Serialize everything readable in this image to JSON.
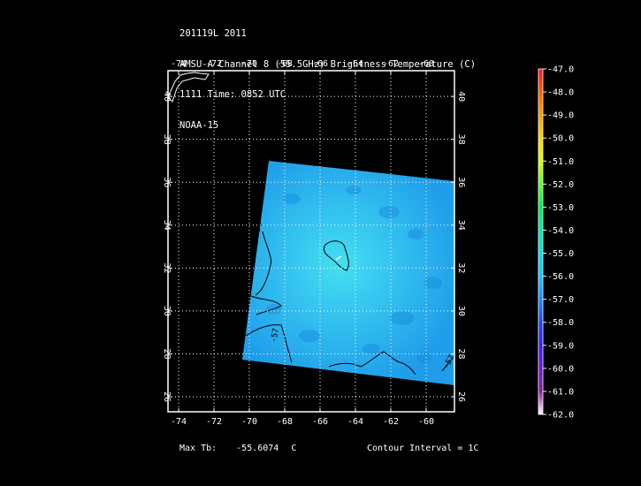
{
  "header": {
    "line1": "201119L 2011",
    "line2": "AMSU-A Channel 8 (55.5GHz) Brightness Temperature (C)",
    "line3": "1111 Time: 0852 UTC",
    "line4": "NOAA-15"
  },
  "map": {
    "lon_range": [
      -74.6,
      -58.4
    ],
    "lat_range": [
      25.3,
      41.2
    ],
    "lon_ticks": [
      "-74",
      "-72",
      "-70",
      "-68",
      "-66",
      "-64",
      "-62",
      "-60"
    ],
    "lat_ticks": [
      "40",
      "38",
      "36",
      "34",
      "32",
      "30",
      "28",
      "26"
    ],
    "contour_labels": [
      "-56",
      "-57",
      "-57"
    ],
    "colors": {
      "field_base": "#1f9dea",
      "field_warm": "#37c8f0",
      "field_center": "#44e0ee",
      "coast": "#ffffff",
      "grid": "#ffffff",
      "contour": "#000000"
    }
  },
  "colorbar": {
    "labels": [
      "-47.0",
      "-48.0",
      "-49.0",
      "-50.0",
      "-51.0",
      "-52.0",
      "-53.0",
      "-54.0",
      "-55.0",
      "-56.0",
      "-57.0",
      "-58.0",
      "-59.0",
      "-60.0",
      "-61.0",
      "-62.0"
    ],
    "colors": [
      "#ff1a1a",
      "#ff5a00",
      "#ff9a00",
      "#ffd200",
      "#d6ff00",
      "#5aff2a",
      "#00e84a",
      "#00e8a8",
      "#00e0e0",
      "#14c2ff",
      "#1a8aff",
      "#1a48ff",
      "#3a1aff",
      "#6a1ad6",
      "#8a1a9a",
      "#ffffff"
    ]
  },
  "footer": {
    "max_label": "Max Tb:",
    "max_value": "-55.6074",
    "max_unit": "C",
    "contour_interval": "Contour Interval = 1C"
  }
}
